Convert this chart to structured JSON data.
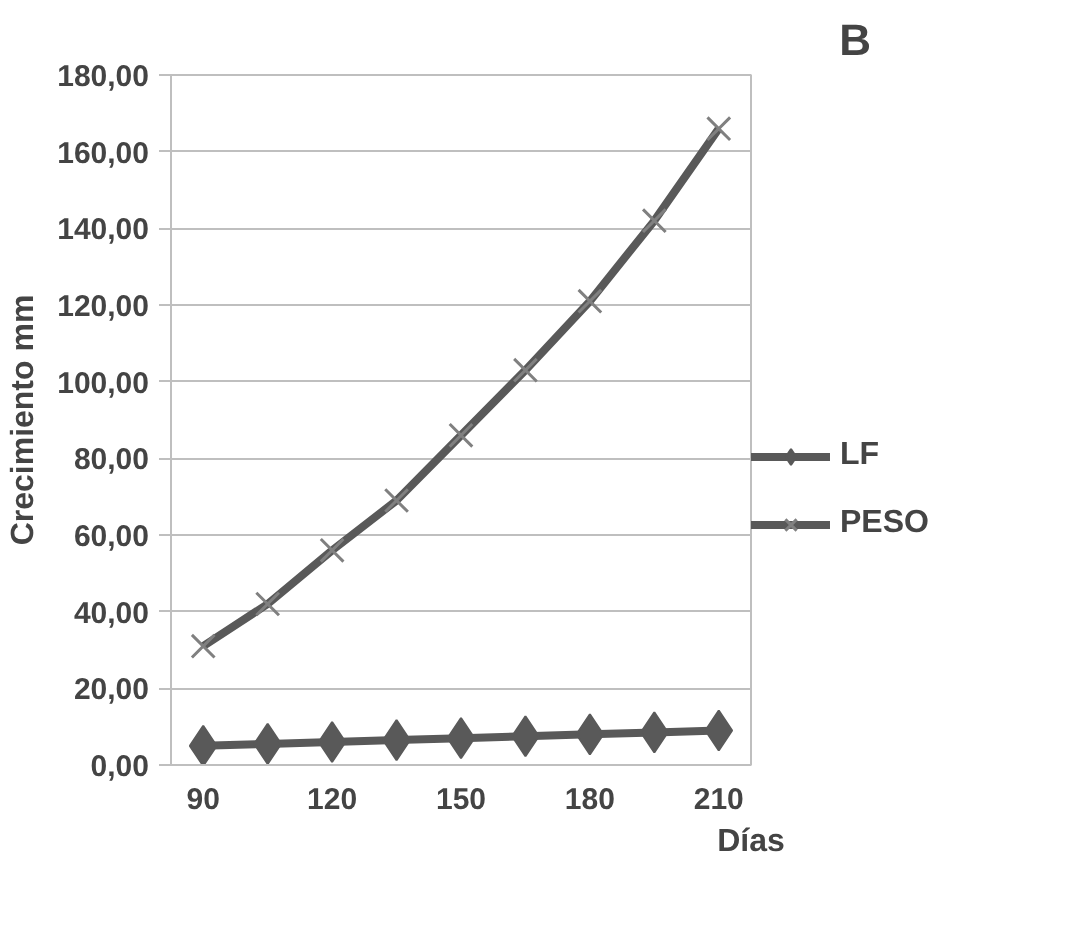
{
  "chart_data": {
    "type": "line",
    "xlabel": "Días",
    "ylabel": "Crecimiento mm",
    "annotations": [
      "B"
    ],
    "x": [
      90,
      105,
      120,
      135,
      150,
      165,
      180,
      195,
      210
    ],
    "series": [
      {
        "name": "LF",
        "color": "#595959",
        "marker": "diamond",
        "values": [
          5,
          5.5,
          6,
          6.5,
          7,
          7.5,
          8,
          8.5,
          9
        ]
      },
      {
        "name": "PESO",
        "color": "#595959",
        "marker": "cross",
        "values": [
          31,
          42,
          56,
          69,
          86,
          103,
          121,
          142,
          166
        ]
      }
    ],
    "xlim": [
      82.5,
      217.5
    ],
    "xticks": [
      90,
      120,
      150,
      180,
      210
    ],
    "ylim": [
      0,
      180
    ],
    "yticks": [
      {
        "value": 0,
        "label": "0,00"
      },
      {
        "value": 20,
        "label": "20,00"
      },
      {
        "value": 40,
        "label": "40,00"
      },
      {
        "value": 60,
        "label": "60,00"
      },
      {
        "value": 80,
        "label": "80,00"
      },
      {
        "value": 100,
        "label": "100,00"
      },
      {
        "value": 120,
        "label": "120,00"
      },
      {
        "value": 140,
        "label": "140,00"
      },
      {
        "value": 160,
        "label": "160,00"
      },
      {
        "value": 180,
        "label": "180,00"
      }
    ],
    "grid": "y",
    "legend": "right",
    "line_style": "solid"
  }
}
